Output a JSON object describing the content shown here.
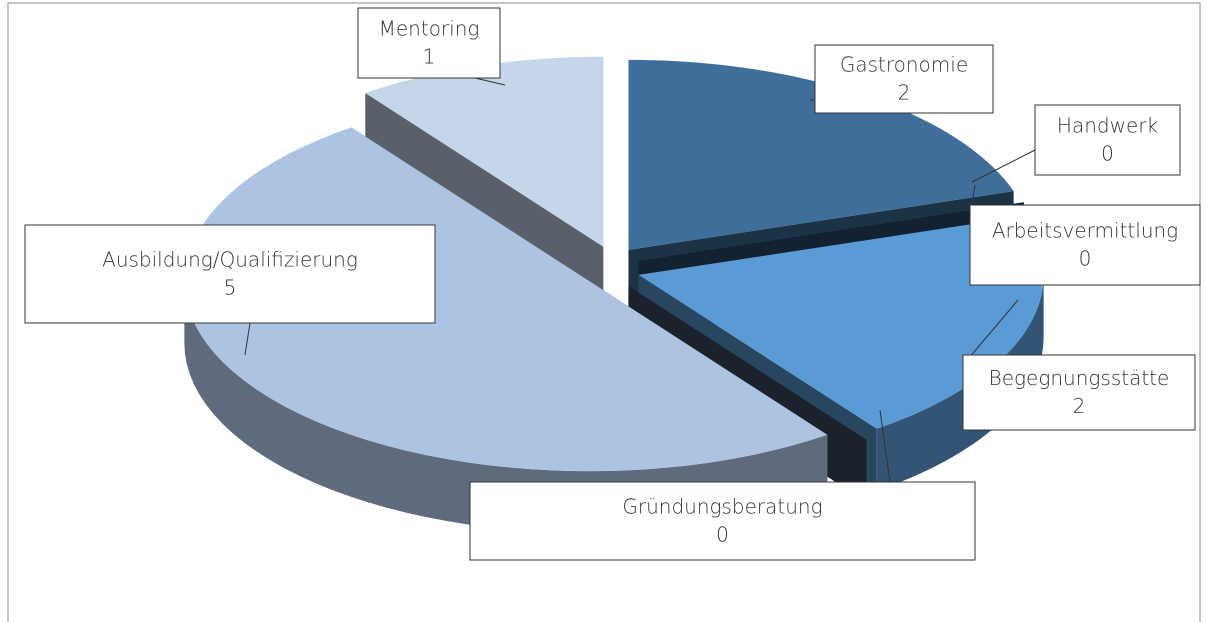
{
  "chart_data": {
    "type": "pie",
    "categories": [
      "Gastronomie",
      "Handwerk",
      "Arbeitsvermittlung",
      "Begegnungsstätte",
      "Gründungsberatung",
      "Ausbildung/Qualifizierung",
      "Mentoring"
    ],
    "values": [
      2,
      0,
      0,
      2,
      0,
      5,
      1
    ],
    "colors": [
      "#3f6e9a",
      "#1f3a58",
      "#2b4c6e",
      "#5b9bd5",
      "#3b4b60",
      "#adc3e2",
      "#c5d5ea"
    ]
  }
}
